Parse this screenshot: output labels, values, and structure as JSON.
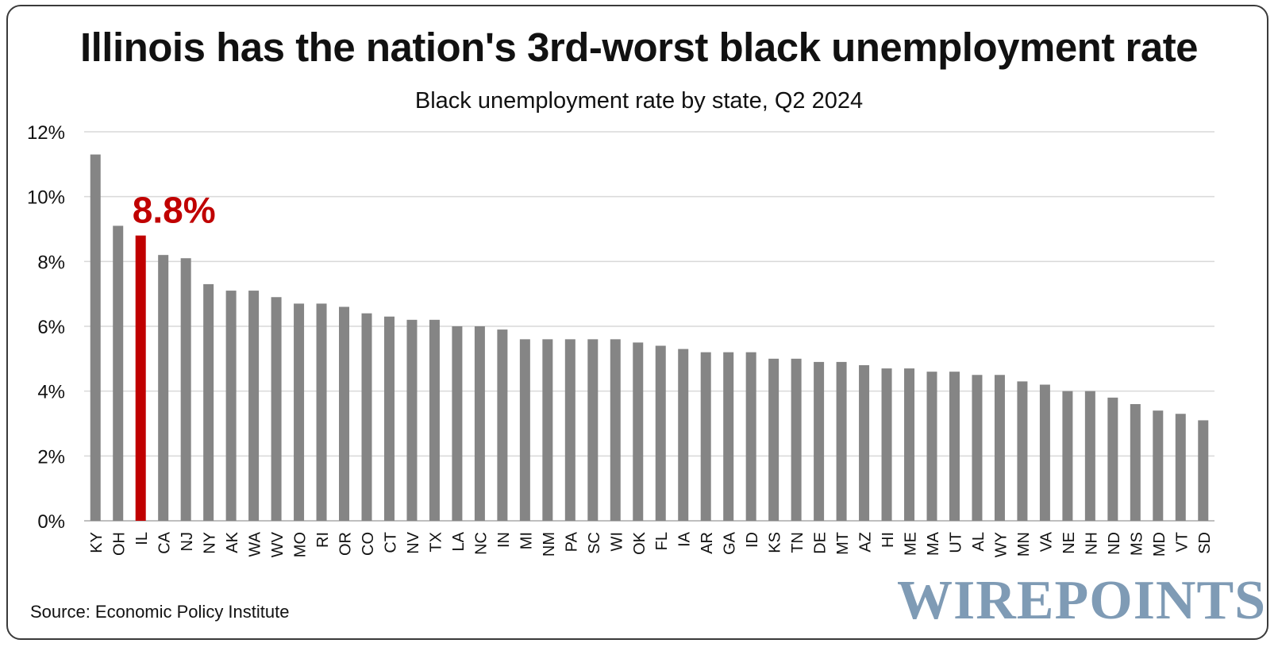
{
  "title": "Illinois has the nation's 3rd-worst black unemployment rate",
  "subtitle": "Black unemployment rate by state, Q2 2024",
  "source": "Source: Economic Policy Institute",
  "logo": "WIREPOINTS",
  "colors": {
    "bar": "#858585",
    "highlight": "#c00000",
    "grid": "#d9d9d9",
    "axis": "#bfbfbf",
    "logo": "#7f9bb5"
  },
  "chart_data": {
    "type": "bar",
    "title": "Black unemployment rate by state, Q2 2024",
    "xlabel": "",
    "ylabel": "",
    "ylim": [
      0,
      12
    ],
    "yticks": [
      "0%",
      "2%",
      "4%",
      "6%",
      "8%",
      "10%",
      "12%"
    ],
    "grid": true,
    "highlight": {
      "category": "IL",
      "label": "8.8%"
    },
    "categories": [
      "KY",
      "OH",
      "IL",
      "CA",
      "NJ",
      "NY",
      "AK",
      "WA",
      "WV",
      "MO",
      "RI",
      "OR",
      "CO",
      "CT",
      "NV",
      "TX",
      "LA",
      "NC",
      "IN",
      "MI",
      "NM",
      "PA",
      "SC",
      "WI",
      "OK",
      "FL",
      "IA",
      "AR",
      "GA",
      "ID",
      "KS",
      "TN",
      "DE",
      "MT",
      "AZ",
      "HI",
      "ME",
      "MA",
      "UT",
      "AL",
      "WY",
      "MN",
      "VA",
      "NE",
      "NH",
      "ND",
      "MS",
      "MD",
      "VT",
      "SD"
    ],
    "values": [
      11.3,
      9.1,
      8.8,
      8.2,
      8.1,
      7.3,
      7.1,
      7.1,
      6.9,
      6.7,
      6.7,
      6.6,
      6.4,
      6.3,
      6.2,
      6.2,
      6.0,
      6.0,
      5.9,
      5.6,
      5.6,
      5.6,
      5.6,
      5.6,
      5.5,
      5.4,
      5.3,
      5.2,
      5.2,
      5.2,
      5.0,
      5.0,
      4.9,
      4.9,
      4.8,
      4.7,
      4.7,
      4.6,
      4.6,
      4.5,
      4.5,
      4.3,
      4.2,
      4.0,
      4.0,
      3.8,
      3.6,
      3.4,
      3.3,
      3.1
    ]
  }
}
